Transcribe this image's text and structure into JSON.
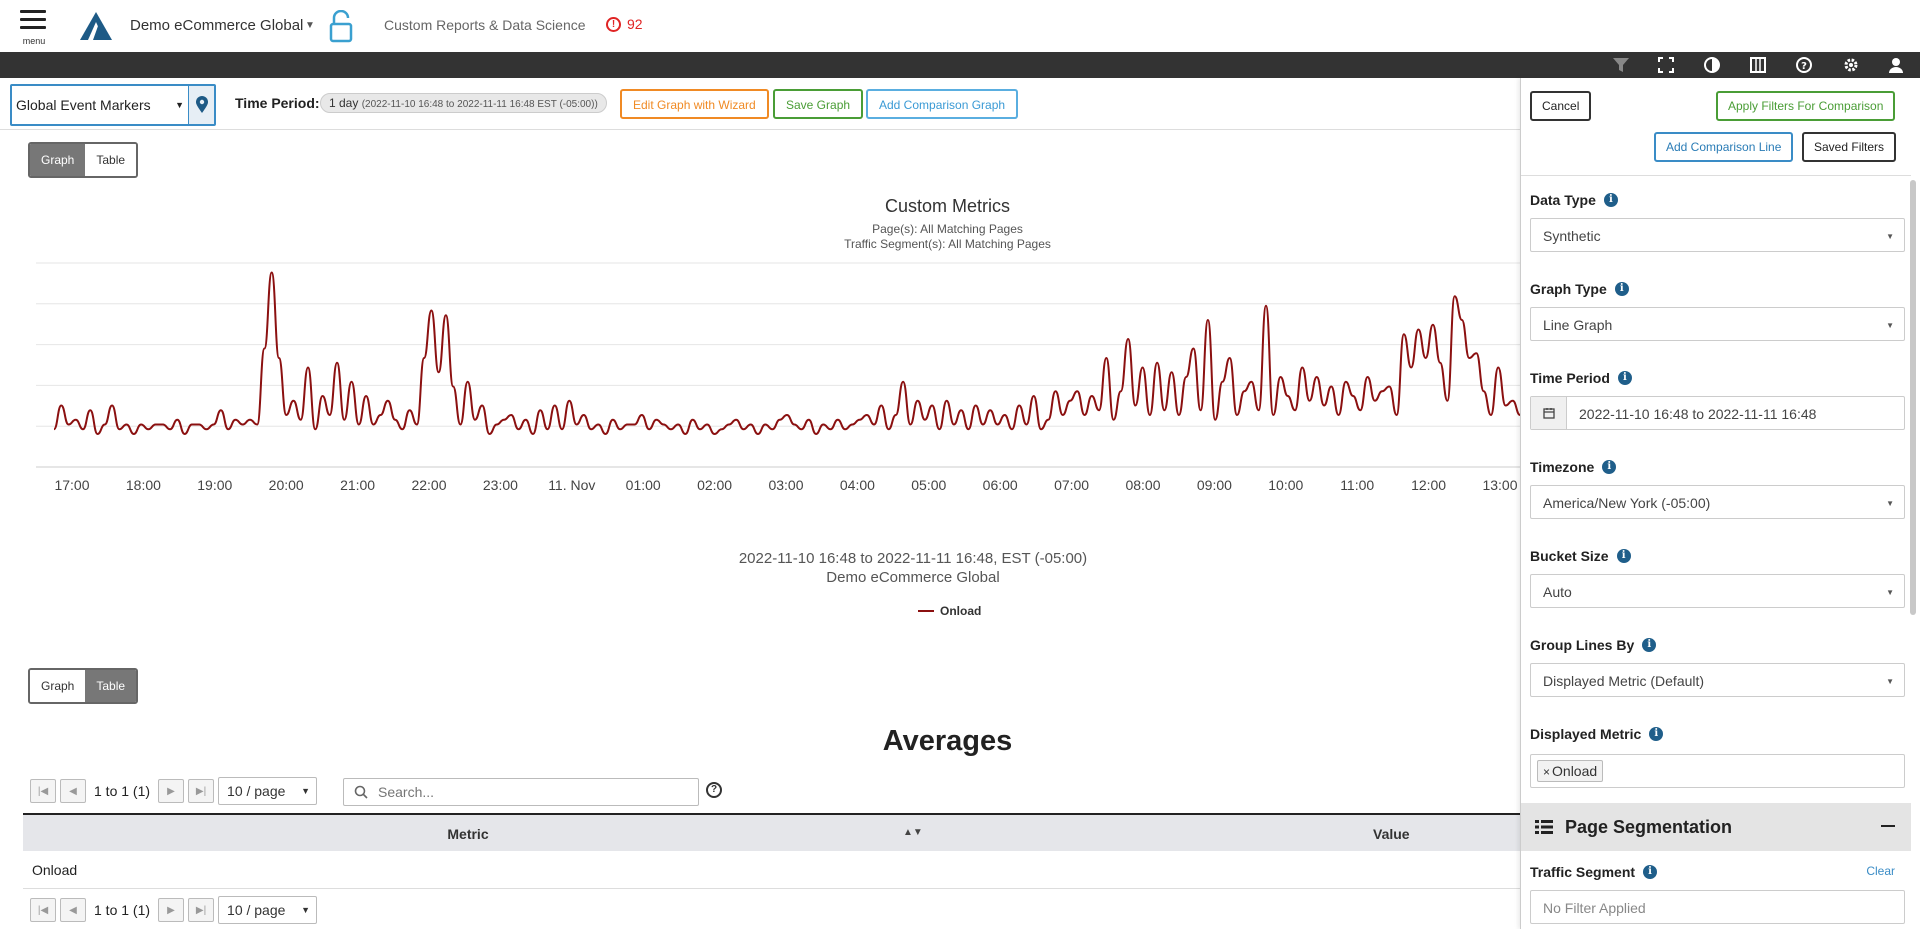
{
  "header": {
    "menu_label": "menu",
    "account": "Demo eCommerce Global",
    "product": "Custom Reports & Data Science",
    "alert_count": "92"
  },
  "toolbar": {
    "markers_value": "Global Event Markers",
    "time_period_label": "Time Period:",
    "time_period_main": "1 day",
    "time_period_range": "(2022-11-10 16:48 to 2022-11-11 16:48 EST (-05:00))",
    "edit_wizard": "Edit Graph with Wizard",
    "save_graph": "Save Graph",
    "add_comparison": "Add Comparison Graph"
  },
  "view_toggle": {
    "graph": "Graph",
    "table": "Table"
  },
  "chart": {
    "title": "Custom Metrics",
    "subtitle1": "Page(s): All Matching Pages",
    "subtitle2": "Traffic Segment(s): All Matching Pages",
    "xaxis_title": "2022-11-10 16:48 to 2022-11-11 16:48, EST (-05:00)",
    "xaxis_subtitle": "Demo eCommerce Global",
    "legend": "Onload",
    "line_color": "#8b1010"
  },
  "chart_data": {
    "type": "line",
    "title": "Custom Metrics",
    "x_tick_labels": [
      "17:00",
      "18:00",
      "19:00",
      "20:00",
      "21:00",
      "22:00",
      "23:00",
      "11. Nov",
      "01:00",
      "02:00",
      "03:00",
      "04:00",
      "05:00",
      "06:00",
      "07:00",
      "08:00",
      "09:00",
      "10:00",
      "11:00",
      "12:00",
      "13:00"
    ],
    "series": [
      {
        "name": "Onload",
        "values": [
          0.5,
          1.0,
          0.6,
          0.7,
          0.5,
          0.9,
          0.4,
          0.6,
          1.0,
          0.5,
          0.6,
          0.4,
          0.6,
          0.5,
          0.6,
          0.6,
          0.5,
          0.7,
          0.4,
          0.6,
          0.6,
          0.5,
          0.6,
          0.9,
          0.5,
          0.7,
          0.6,
          0.7,
          0.6,
          2.2,
          3.8,
          2.0,
          0.8,
          1.1,
          0.7,
          1.8,
          0.5,
          1.2,
          0.8,
          1.9,
          0.7,
          1.5,
          0.6,
          1.2,
          0.6,
          0.8,
          1.1,
          0.7,
          0.5,
          0.9,
          0.6,
          2.0,
          3.0,
          1.7,
          2.9,
          1.4,
          0.6,
          1.5,
          0.7,
          1.0,
          0.4,
          0.6,
          0.7,
          0.8,
          0.5,
          0.7,
          0.4,
          0.9,
          0.5,
          1.0,
          0.5,
          1.1,
          0.6,
          0.8,
          0.5,
          0.6,
          0.4,
          0.7,
          0.5,
          0.6,
          0.6,
          0.8,
          0.5,
          0.7,
          0.6,
          0.5,
          0.6,
          0.4,
          0.7,
          0.5,
          0.6,
          0.4,
          0.5,
          0.6,
          0.7,
          0.5,
          0.6,
          0.4,
          0.6,
          0.5,
          0.7,
          0.8,
          0.6,
          0.5,
          0.7,
          0.4,
          0.6,
          0.5,
          0.7,
          0.5,
          0.6,
          0.7,
          0.8,
          0.6,
          1.0,
          0.5,
          0.8,
          1.5,
          0.6,
          1.1,
          0.7,
          1.0,
          0.5,
          1.1,
          0.6,
          0.9,
          0.5,
          1.0,
          0.6,
          0.9,
          0.6,
          0.8,
          0.5,
          1.0,
          0.6,
          1.2,
          0.5,
          0.7,
          1.3,
          0.8,
          1.1,
          1.3,
          0.8,
          1.2,
          0.9,
          2.0,
          0.7,
          1.3,
          2.4,
          1.0,
          1.8,
          0.8,
          1.9,
          0.9,
          1.7,
          0.8,
          1.6,
          2.2,
          0.9,
          2.8,
          0.7,
          1.5,
          2.0,
          0.8,
          1.3,
          1.5,
          0.9,
          3.1,
          0.8,
          1.6,
          1.2,
          0.9,
          1.8,
          1.1,
          1.6,
          1.0,
          1.4,
          0.8,
          1.5,
          1.2,
          0.9,
          1.6,
          1.1,
          1.3,
          1.4,
          0.8,
          2.5,
          1.8,
          2.6,
          2.0,
          2.7,
          1.9,
          1.1,
          3.3,
          2.8,
          2.0,
          2.1,
          1.3,
          0.8,
          1.8,
          1.0,
          1.1,
          0.8
        ]
      }
    ],
    "y_hidden": true
  },
  "averages": {
    "title": "Averages",
    "range_text": "1 to 1 (1)",
    "per_page": "10 / page",
    "search_placeholder": "Search...",
    "col_metric": "Metric",
    "col_value": "Value",
    "rows": [
      {
        "metric": "Onload"
      }
    ]
  },
  "panel": {
    "cancel": "Cancel",
    "apply": "Apply Filters For Comparison",
    "add_line": "Add Comparison Line",
    "saved_filters": "Saved Filters",
    "data_type_label": "Data Type",
    "data_type": "Synthetic",
    "graph_type_label": "Graph Type",
    "graph_type": "Line Graph",
    "time_period_label": "Time Period",
    "time_period": "2022-11-10 16:48 to 2022-11-11 16:48",
    "timezone_label": "Timezone",
    "timezone": "America/New York (-05:00)",
    "bucket_label": "Bucket Size",
    "bucket": "Auto",
    "group_label": "Group Lines By",
    "group": "Displayed Metric (Default)",
    "metric_label": "Displayed Metric",
    "metric_chip": "Onload",
    "segmentation_title": "Page Segmentation",
    "traffic_label": "Traffic Segment",
    "clear": "Clear",
    "traffic_placeholder": "No Filter Applied"
  }
}
